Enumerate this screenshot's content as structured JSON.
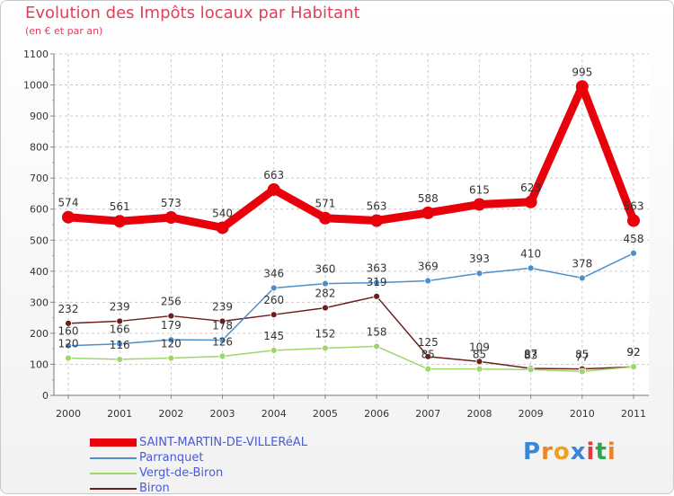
{
  "header": {
    "title": "Evolution des Impôts locaux par Habitant",
    "subtitle": "(en € et par an)"
  },
  "logo": {
    "text": "Proxiti",
    "letter_colors": [
      "#3a86d6",
      "#e8842c",
      "#f0a020",
      "#3a86d6",
      "#e03a3a",
      "#2aa84a",
      "#e8842c"
    ]
  },
  "chart_data": {
    "type": "line",
    "title": "Evolution des Impôts locaux par Habitant",
    "subtitle": "(en € et par an)",
    "x": [
      "2000",
      "2001",
      "2002",
      "2003",
      "2004",
      "2005",
      "2006",
      "2007",
      "2008",
      "2009",
      "2010",
      "2011"
    ],
    "ylim": [
      0,
      1100
    ],
    "yticks": [
      "0",
      "100",
      "200",
      "300",
      "400",
      "500",
      "600",
      "700",
      "800",
      "900",
      "1000",
      "1100"
    ],
    "grid": true,
    "legend_position": "bottom-left",
    "series": [
      {
        "name": "SAINT-MARTIN-DE-VILLERéAL",
        "color": "#e8000b",
        "values": [
          574,
          561,
          573,
          540,
          663,
          571,
          563,
          588,
          615,
          623,
          995,
          563
        ],
        "labels": [
          "574",
          "561",
          "573",
          "540",
          "663",
          "571",
          "563",
          "588",
          "615",
          "623",
          "995",
          "563"
        ]
      },
      {
        "name": "Parranquet",
        "color": "#4e8fc9",
        "values": [
          160,
          166,
          179,
          178,
          346,
          360,
          363,
          369,
          393,
          410,
          378,
          458
        ],
        "labels": [
          "160",
          "166",
          "179",
          "178",
          "346",
          "360",
          "363",
          "369",
          "393",
          "410",
          "378",
          "458"
        ]
      },
      {
        "name": "Vergt-de-Biron",
        "color": "#9ed66a",
        "values": [
          120,
          116,
          120,
          126,
          145,
          152,
          158,
          85,
          85,
          83,
          77,
          92
        ],
        "labels": [
          "120",
          "116",
          "120",
          "126",
          "145",
          "152",
          "158",
          "85",
          "85",
          "83",
          "77",
          "92"
        ]
      },
      {
        "name": "Biron",
        "color": "#6b1f1f",
        "values": [
          232,
          239,
          256,
          239,
          260,
          282,
          319,
          125,
          109,
          87,
          85,
          92
        ],
        "labels": [
          "232",
          "239",
          "256",
          "239",
          "260",
          "282",
          "319",
          "125",
          "109",
          "87",
          "85",
          "92"
        ]
      }
    ]
  }
}
